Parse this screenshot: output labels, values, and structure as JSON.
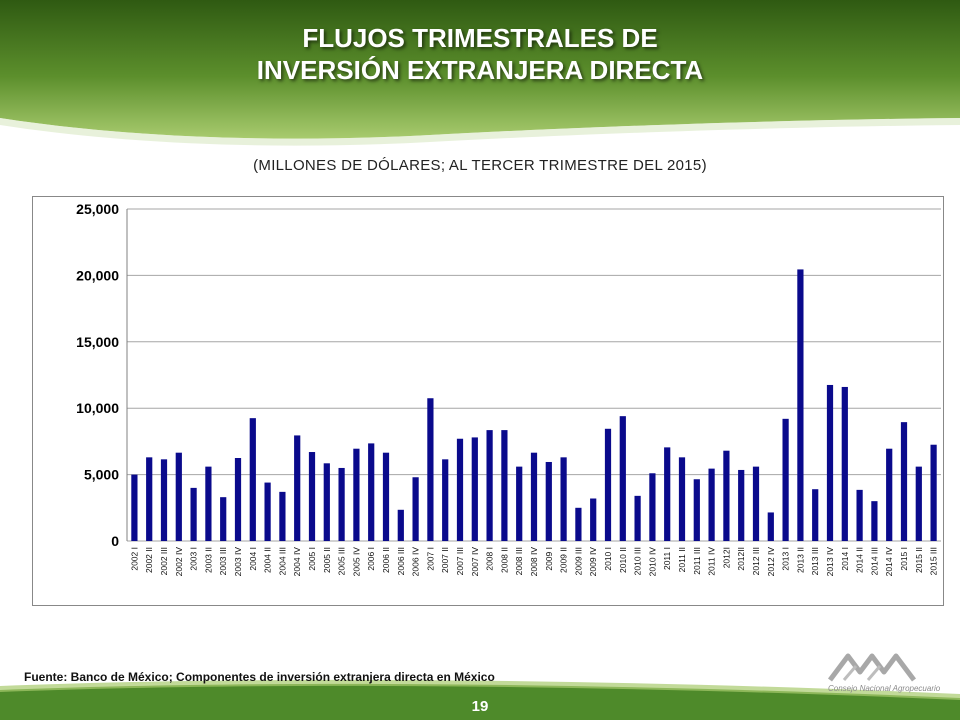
{
  "slide": {
    "title_line1": "FLUJOS TRIMESTRALES DE",
    "title_line2": "INVERSIÓN EXTRANJERA DIRECTA",
    "subtitle": "(MILLONES DE DÓLARES; AL TERCER TRIMESTRE DEL 2015)",
    "source": "Fuente: Banco de México; Componentes de inversión extranjera directa en México",
    "page_number": "19",
    "logo_text": "Consejo Nacional Agropecuario"
  },
  "colors": {
    "bar": "#0A0A8C",
    "grid": "#A6A6A6",
    "banner_dark": "#3E6F1E",
    "banner_light": "#9AC35B",
    "footer_green": "#4E8A2A"
  },
  "chart_data": {
    "type": "bar",
    "title": "",
    "xlabel": "",
    "ylabel": "",
    "ylim": [
      0,
      25000
    ],
    "yticks": [
      "0",
      "5,000",
      "10,000",
      "15,000",
      "20,000",
      "25,000"
    ],
    "ytick_values": [
      0,
      5000,
      10000,
      15000,
      20000,
      25000
    ],
    "grid": true,
    "legend": "none",
    "categories": [
      "2002 I",
      "2002 II",
      "2002 III",
      "2002 IV",
      "2003 I",
      "2003 II",
      "2003 III",
      "2003 IV",
      "2004 I",
      "2004 II",
      "2004 III",
      "2004 IV",
      "2005 I",
      "2005 II",
      "2005 III",
      "2005 IV",
      "2006 I",
      "2006 II",
      "2006 III",
      "2006 IV",
      "2007 I",
      "2007 II",
      "2007 III",
      "2007 IV",
      "2008 I",
      "2008 II",
      "2008 III",
      "2008 IV",
      "2009 I",
      "2009 II",
      "2009 III",
      "2009 IV",
      "2010 I",
      "2010 II",
      "2010 III",
      "2010 IV",
      "2011 I",
      "2011 II",
      "2011 III",
      "2011 IV",
      "2012I",
      "2012II",
      "2012 III",
      "2012 IV",
      "2013 I",
      "2013 II",
      "2013 III",
      "2013 IV",
      "2014 I",
      "2014 II",
      "2014 III",
      "2014 IV",
      "2015 I",
      "2015 II",
      "2015 III"
    ],
    "values": [
      5000,
      6300,
      6150,
      6650,
      4000,
      5600,
      3300,
      6250,
      9250,
      4400,
      3700,
      7950,
      6700,
      5850,
      5500,
      6950,
      7350,
      6650,
      2350,
      4800,
      10750,
      6150,
      7700,
      7800,
      8350,
      8350,
      5600,
      6650,
      5950,
      6300,
      2500,
      3200,
      8450,
      9400,
      3400,
      5100,
      7050,
      6300,
      4650,
      5450,
      6800,
      5350,
      5600,
      2150,
      9200,
      20450,
      3900,
      11750,
      11600,
      3850,
      3000,
      6950,
      8950,
      5600,
      7250
    ]
  }
}
